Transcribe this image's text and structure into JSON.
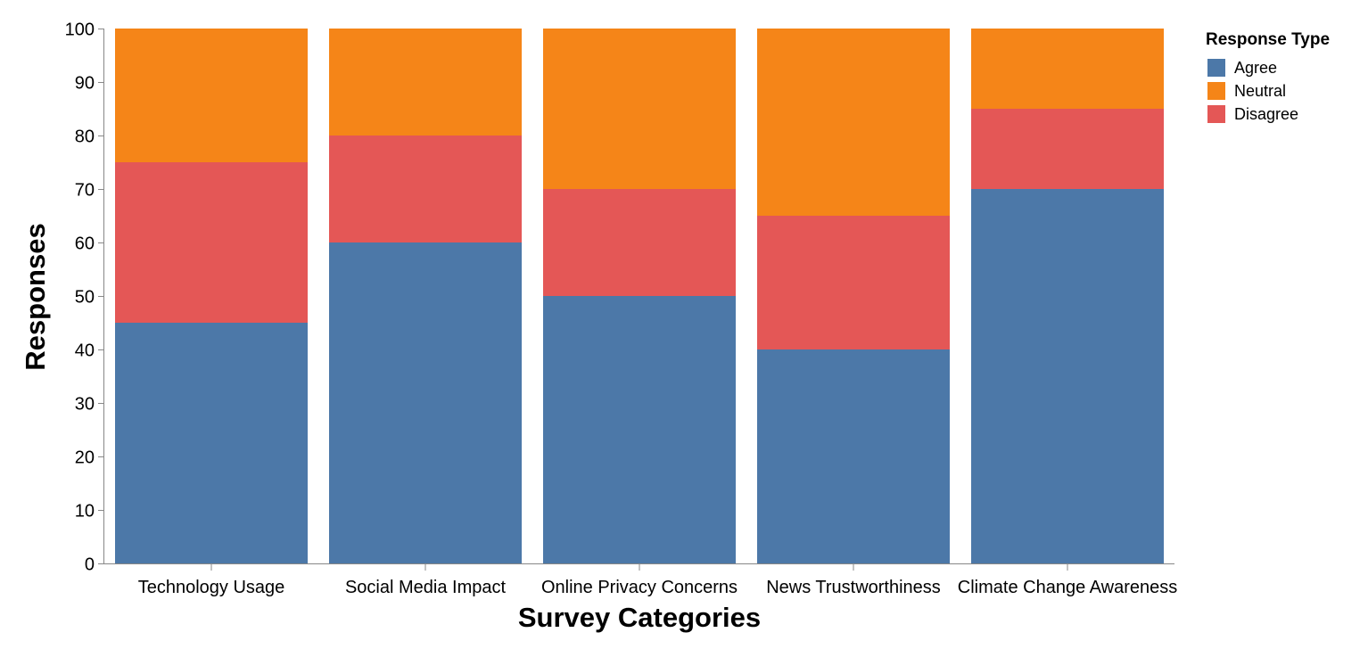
{
  "chart_data": {
    "type": "bar",
    "stacked": true,
    "xlabel": "Survey Categories",
    "ylabel": "Responses",
    "ylim": [
      0,
      100
    ],
    "yticks": [
      0,
      10,
      20,
      30,
      40,
      50,
      60,
      70,
      80,
      90,
      100
    ],
    "categories": [
      "Technology Usage",
      "Social Media Impact",
      "Online Privacy Concerns",
      "News Trustworthiness",
      "Climate Change Awareness"
    ],
    "series": [
      {
        "name": "Agree",
        "color": "#4c78a8",
        "values": [
          45,
          60,
          50,
          40,
          70
        ]
      },
      {
        "name": "Disagree",
        "color": "#e45756",
        "values": [
          30,
          20,
          20,
          25,
          15
        ]
      },
      {
        "name": "Neutral",
        "color": "#f58518",
        "values": [
          25,
          20,
          30,
          35,
          15
        ]
      }
    ],
    "grid": false,
    "legend": {
      "title": "Response Type",
      "position": "top-right",
      "items": [
        {
          "name": "Agree",
          "color": "#4c78a8"
        },
        {
          "name": "Neutral",
          "color": "#f58518"
        },
        {
          "name": "Disagree",
          "color": "#e45756"
        }
      ]
    }
  }
}
